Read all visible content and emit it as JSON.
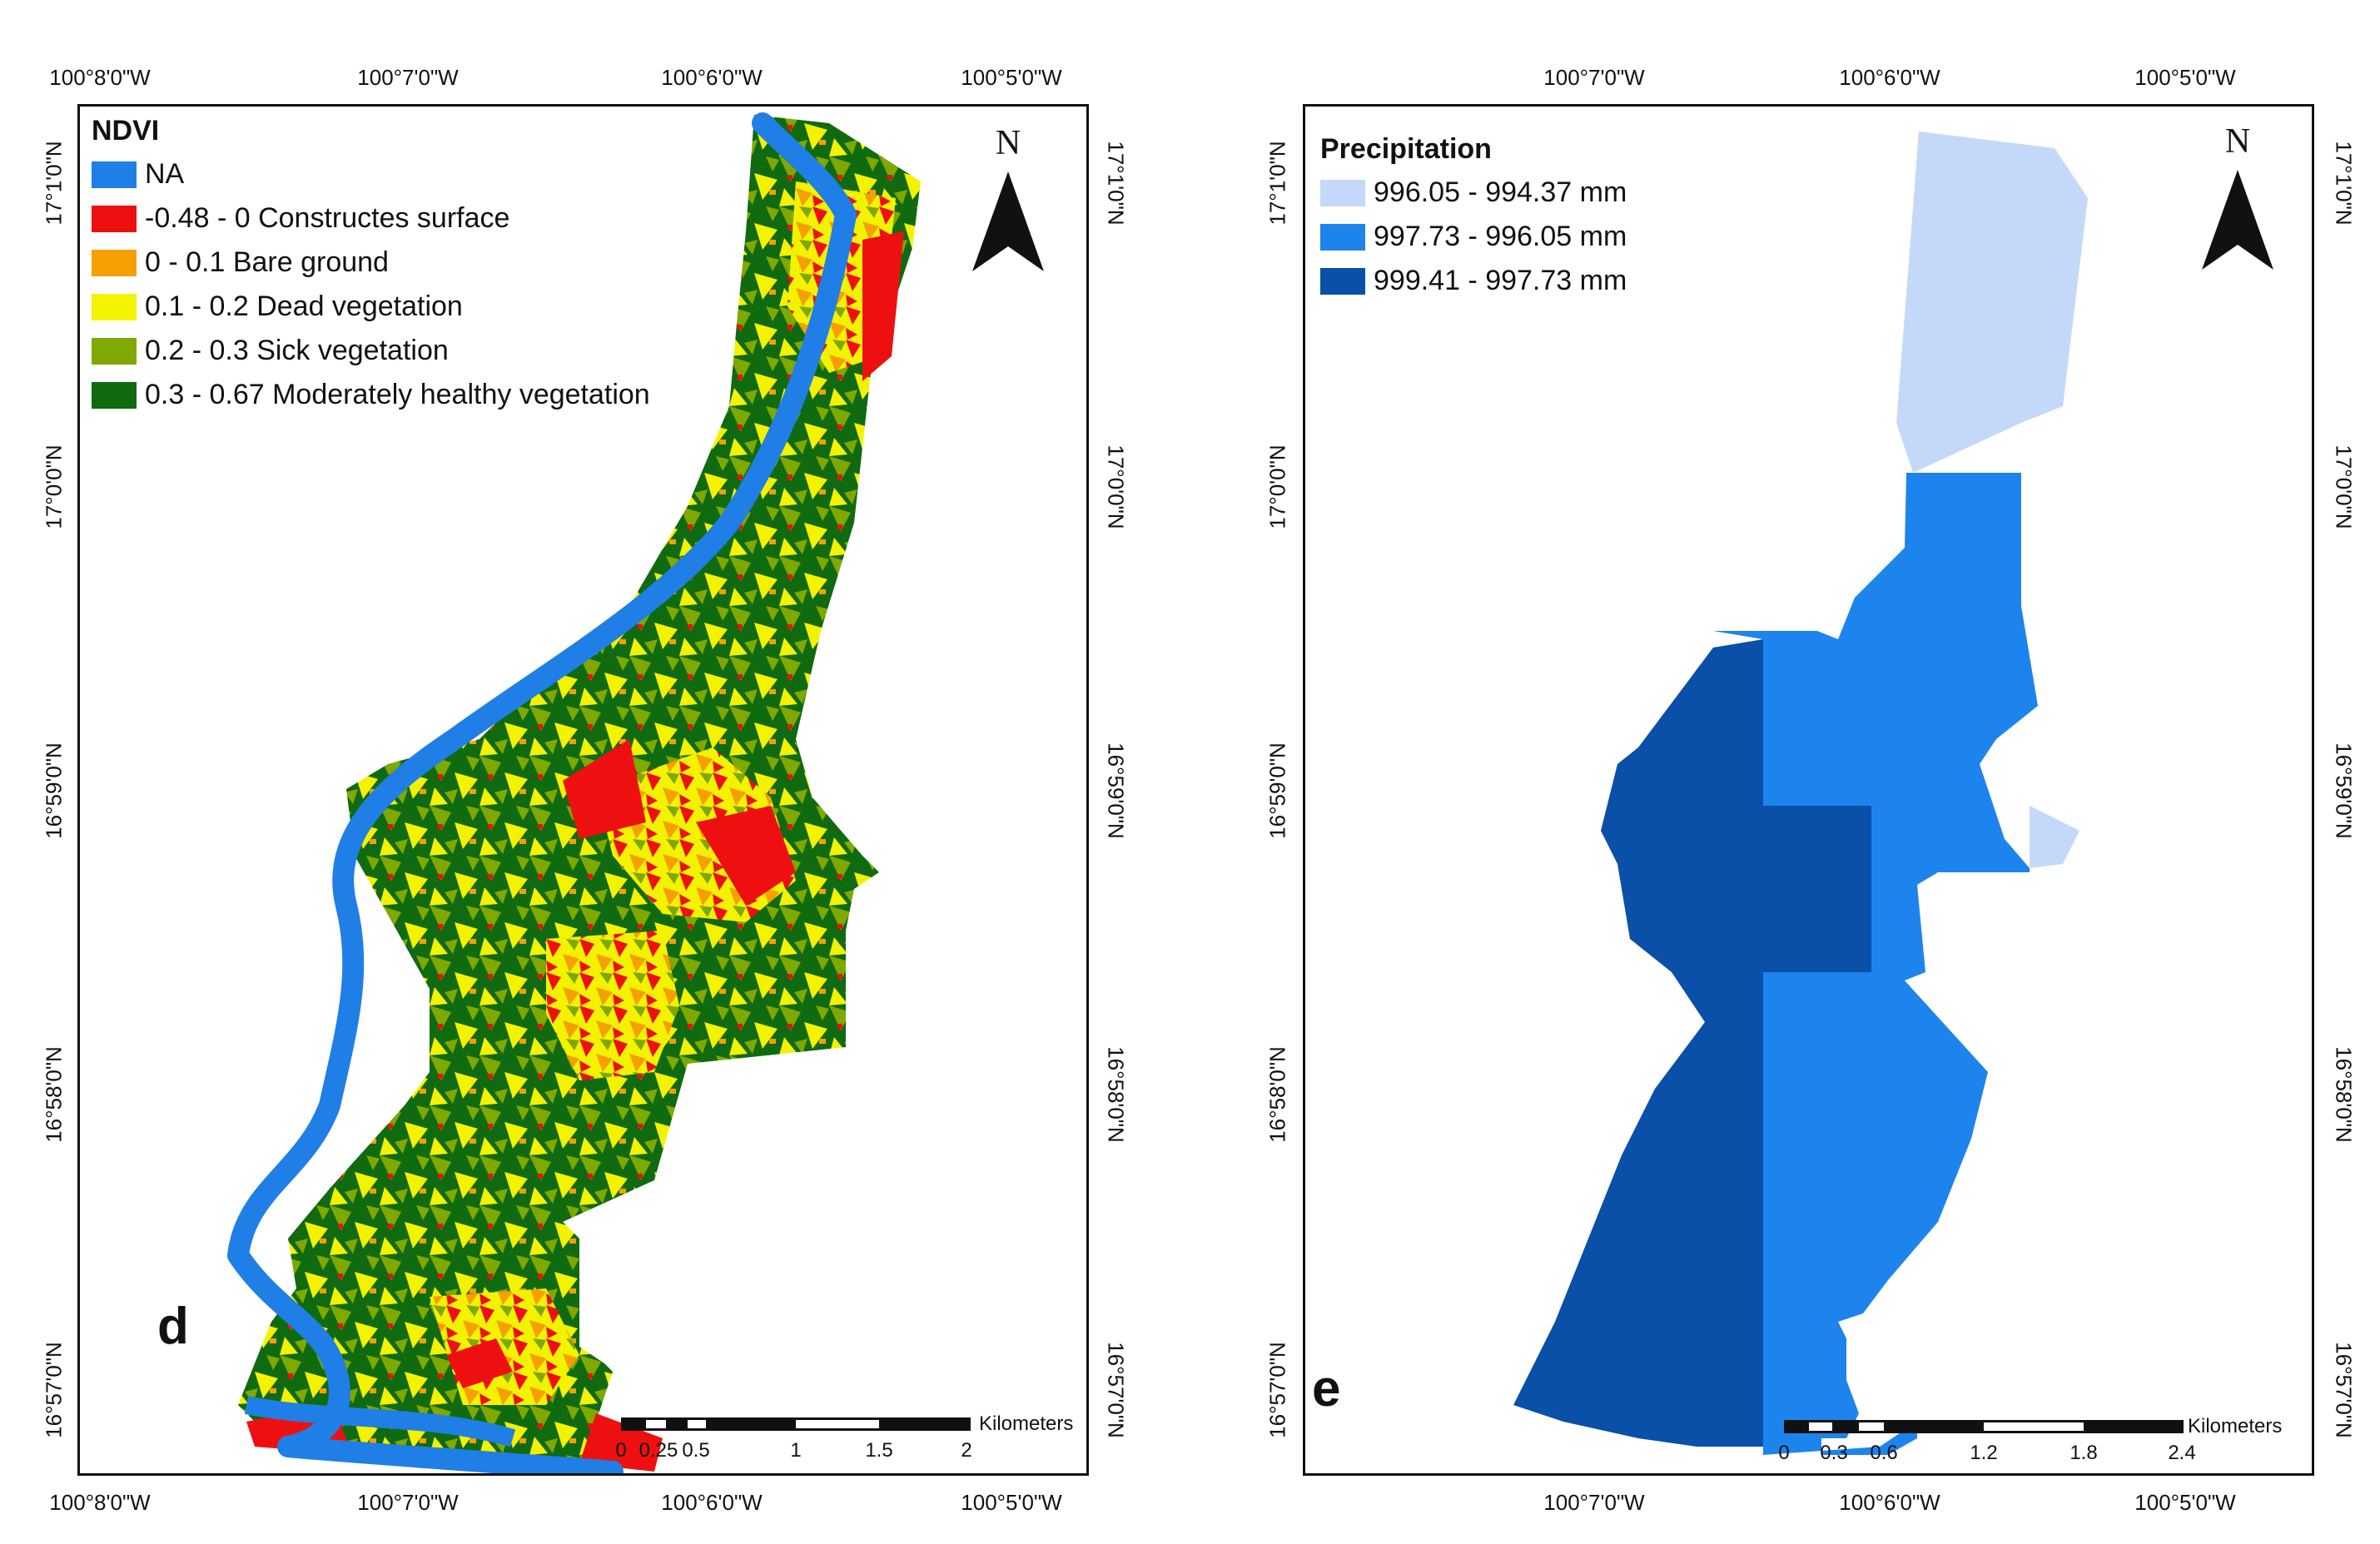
{
  "panel_d": {
    "letter": "d",
    "legend": {
      "title": "NDVI",
      "items": [
        {
          "label": "NA",
          "color": "#1f7fe6"
        },
        {
          "label": "-0.48 - 0 Constructes surface",
          "color": "#ee1010"
        },
        {
          "label": "0 - 0.1 Bare ground",
          "color": "#f5a000"
        },
        {
          "label": "0.1 - 0.2 Dead vegetation",
          "color": "#f3f200"
        },
        {
          "label": "0.2 - 0.3 Sick vegetation",
          "color": "#7fa800"
        },
        {
          "label": "0.3 - 0.67 Moderately healthy vegetation",
          "color": "#106a10"
        }
      ]
    },
    "x_ticks": [
      "100°8'0\"W",
      "100°7'0\"W",
      "100°6'0\"W",
      "100°5'0\"W"
    ],
    "y_ticks": [
      "17°1'0\"N",
      "17°0'0\"N",
      "16°59'0\"N",
      "16°58'0\"N",
      "16°57'0\"N"
    ],
    "north": "N",
    "scale": {
      "labels": [
        "0",
        "0.25",
        "0.5",
        "1",
        "1.5",
        "2"
      ],
      "unit": "Kilometers"
    }
  },
  "panel_e": {
    "letter": "e",
    "legend": {
      "title": "Precipitation",
      "items": [
        {
          "label": "996.05 - 994.37 mm",
          "color": "#c4d9f9"
        },
        {
          "label": "997.73 - 996.05 mm",
          "color": "#1d84ee"
        },
        {
          "label": "999.41 - 997.73 mm",
          "color": "#0a4fa8"
        }
      ]
    },
    "x_ticks": [
      "100°7'0\"W",
      "100°6'0\"W",
      "100°5'0\"W"
    ],
    "y_ticks": [
      "17°1'0\"N",
      "17°0'0\"N",
      "16°59'0\"N",
      "16°58'0\"N",
      "16°57'0\"N"
    ],
    "north": "N",
    "scale": {
      "labels": [
        "0",
        "0.3",
        "0.6",
        "1.2",
        "1.8",
        "2.4"
      ],
      "unit": "Kilometers"
    }
  }
}
